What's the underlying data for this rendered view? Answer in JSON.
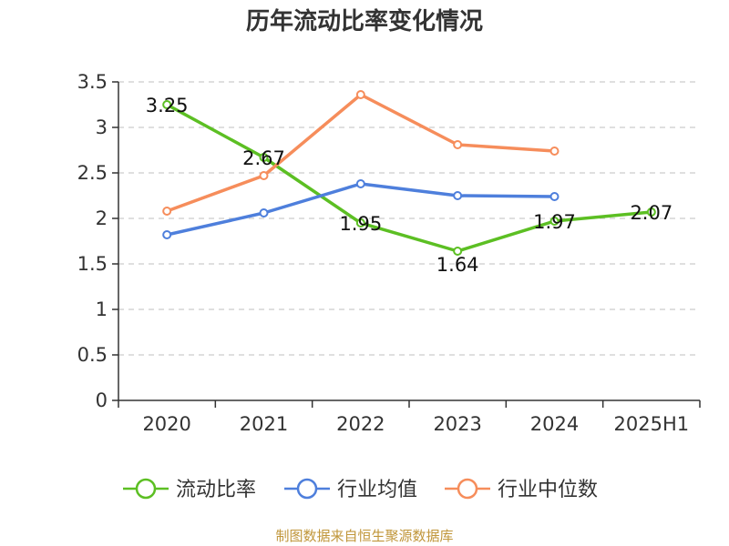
{
  "chart_data": {
    "type": "line",
    "title": "历年流动比率变化情况",
    "categories": [
      "2020",
      "2021",
      "2022",
      "2023",
      "2024",
      "2025H1"
    ],
    "ylim": [
      0,
      3.5
    ],
    "yticks": [
      "0",
      "0.5",
      "1",
      "1.5",
      "2",
      "2.5",
      "3",
      "3.5"
    ],
    "grid": true,
    "legend_position": "bottom",
    "series": [
      {
        "name": "流动比率",
        "color": "#5cbf23",
        "values": [
          3.25,
          2.67,
          1.95,
          1.64,
          1.97,
          2.07
        ],
        "labels": [
          "3.25",
          "2.67",
          "1.95",
          "1.64",
          "1.97",
          "2.07"
        ]
      },
      {
        "name": "行业均值",
        "color": "#4e7fdc",
        "values": [
          1.82,
          2.06,
          2.38,
          2.25,
          2.24,
          null
        ]
      },
      {
        "name": "行业中位数",
        "color": "#f68d5b",
        "values": [
          2.08,
          2.47,
          3.36,
          2.81,
          2.74,
          null
        ]
      }
    ]
  },
  "source": "制图数据来自恒生聚源数据库"
}
